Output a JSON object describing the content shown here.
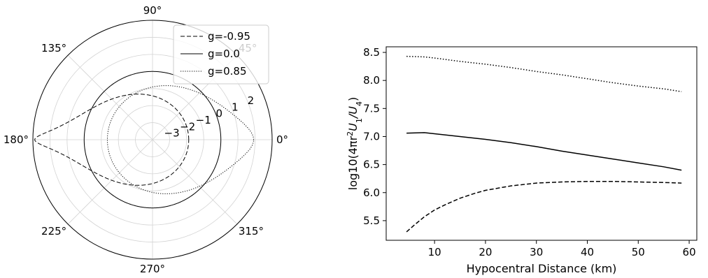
{
  "chart_data": [
    {
      "type": "polar-line",
      "r_scale": "log10",
      "r_range": [
        -4,
        3
      ],
      "r_ticks": [
        "−3",
        "−2",
        "−1",
        "0",
        "1",
        "2"
      ],
      "theta_ticks": [
        "0°",
        "45°",
        "90°",
        "135°",
        "180°",
        "225°",
        "270°",
        "315°"
      ],
      "grid": true,
      "legend_position": "top-right",
      "series": [
        {
          "name": "g=-0.95",
          "style": "dashed",
          "g": -0.95
        },
        {
          "name": "g=0.0",
          "style": "solid",
          "g": 0.0
        },
        {
          "name": "g=0.85",
          "style": "dotted",
          "g": 0.85
        }
      ]
    },
    {
      "type": "line",
      "xlabel": "Hypocentral Distance (km)",
      "ylabel_base": "log10(4πr",
      "ylabel_sup": "2",
      "ylabel_mid1": "U",
      "ylabel_sub1": "1",
      "ylabel_slash": "/U",
      "ylabel_sub2": "4",
      "ylabel_end": ")",
      "xlim": [
        0.5,
        61.5
      ],
      "ylim": [
        5.15,
        8.6
      ],
      "x_ticks": [
        10,
        20,
        30,
        40,
        50,
        60
      ],
      "y_ticks": [
        5.5,
        6.0,
        6.5,
        7.0,
        7.5,
        8.0,
        8.5
      ],
      "x_tick_labels": [
        "10",
        "20",
        "30",
        "40",
        "50",
        "60"
      ],
      "y_tick_labels": [
        "5.5",
        "6.0",
        "6.5",
        "7.0",
        "7.5",
        "8.0",
        "8.5"
      ],
      "series": [
        {
          "style": "dotted",
          "x": [
            4.5,
            8,
            10,
            15,
            20,
            25,
            30,
            35,
            40,
            45,
            50,
            55,
            58.5
          ],
          "y": [
            8.43,
            8.42,
            8.4,
            8.34,
            8.29,
            8.23,
            8.16,
            8.1,
            8.03,
            7.96,
            7.9,
            7.85,
            7.8
          ]
        },
        {
          "style": "solid",
          "x": [
            4.5,
            8,
            10,
            15,
            20,
            25,
            30,
            35,
            40,
            45,
            50,
            55,
            58.5
          ],
          "y": [
            7.06,
            7.07,
            7.05,
            7.0,
            6.95,
            6.89,
            6.82,
            6.74,
            6.67,
            6.6,
            6.53,
            6.46,
            6.4
          ]
        },
        {
          "style": "dashed",
          "x": [
            4.5,
            6,
            8,
            10,
            12,
            15,
            18,
            20,
            25,
            30,
            35,
            40,
            45,
            50,
            55,
            58.5
          ],
          "y": [
            5.3,
            5.42,
            5.57,
            5.69,
            5.78,
            5.9,
            5.99,
            6.04,
            6.12,
            6.17,
            6.19,
            6.2,
            6.2,
            6.19,
            6.18,
            6.17
          ]
        }
      ]
    }
  ]
}
